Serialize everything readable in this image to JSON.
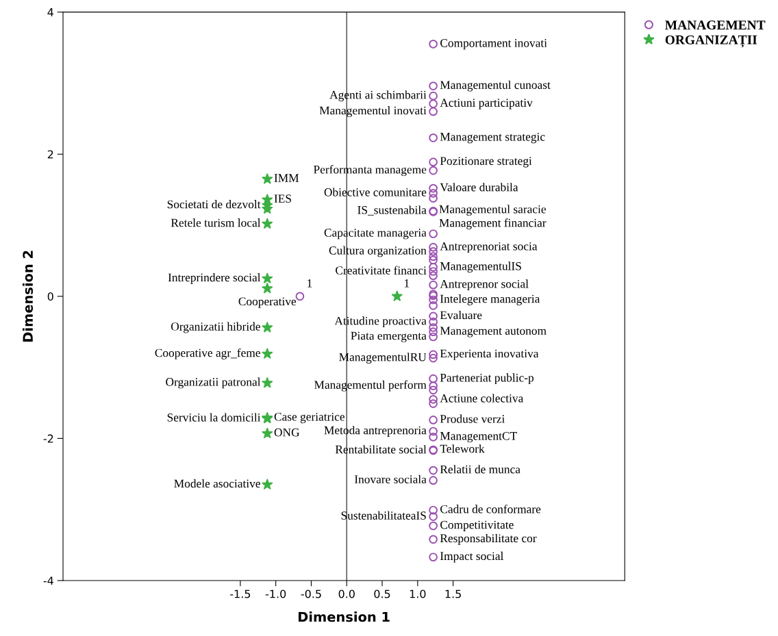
{
  "chart_data": {
    "type": "scatter",
    "xlabel": "Dimension 1",
    "ylabel": "Dimension 2",
    "xlim": [
      -4.0,
      3.92
    ],
    "ylim": [
      -4,
      4
    ],
    "xticks": [
      -1.5,
      {
        "value": -1,
        "label": "-1.0"
      },
      -0.5,
      {
        "value": 0,
        "label": "0.0"
      },
      0.5,
      {
        "value": 1,
        "label": "1.0"
      },
      1.5
    ],
    "yticks": [
      -4,
      -2,
      0,
      2,
      4
    ],
    "grid": false,
    "legend": "top right",
    "ref_lines": [
      {
        "axis": "x",
        "value": 0,
        "color": "#444444"
      }
    ],
    "series": [
      {
        "name": "MANAGEMENT",
        "color": "#9b4fb0",
        "marker": "circle",
        "x": [
          1.22,
          1.22,
          1.22,
          1.22,
          1.22,
          1.22,
          1.22,
          1.22,
          1.22,
          1.22,
          1.22,
          1.22,
          1.22,
          1.22,
          1.22,
          1.22,
          1.22,
          1.22,
          1.22,
          1.22,
          1.22,
          1.22,
          1.22,
          1.22,
          1.22,
          1.22,
          1.22,
          1.22,
          1.22,
          1.22,
          1.22,
          1.22,
          1.22,
          1.22,
          1.22,
          1.22,
          1.22,
          1.22,
          1.22,
          1.22,
          1.22,
          1.22,
          1.22,
          1.22,
          1.22,
          1.22,
          1.22,
          1.22,
          1.22,
          1.22,
          -0.66
        ],
        "values": [
          3.55,
          2.96,
          2.82,
          2.71,
          2.6,
          2.23,
          1.89,
          1.77,
          1.52,
          1.45,
          1.38,
          1.2,
          1.19,
          0.88,
          0.69,
          0.63,
          0.56,
          0.51,
          0.41,
          0.35,
          0.29,
          0.16,
          0.01,
          0.03,
          -0.05,
          -0.13,
          -0.28,
          -0.36,
          -0.44,
          -0.5,
          -0.57,
          -0.82,
          -0.87,
          -1.16,
          -1.26,
          -1.32,
          -1.45,
          -1.51,
          -1.74,
          -1.9,
          -1.98,
          -2.16,
          -2.17,
          -2.45,
          -2.59,
          -3.01,
          -3.1,
          -3.23,
          -3.42,
          -3.67,
          0.0
        ],
        "value_labels": [
          "Comportament inovati",
          "Managementul cunoast",
          "Agenti ai schimbarii",
          "Actiuni participativ",
          "Managementul inovati",
          "Management strategic",
          "Pozitionare strategi",
          "Performanta manageme",
          "Valoare durabila",
          "Obiective comunitare",
          "Managementul saracie",
          "IS_sustenabila",
          "Management financiar",
          "Capacitate manageria",
          "Antreprenoriat socia",
          "Cultura organization",
          null,
          null,
          "ManagementulIS",
          "Creativitate financi",
          null,
          "Antreprenor social",
          null,
          null,
          "Intelegere manageria",
          null,
          "Evaluare",
          "Atitudine proactiva",
          null,
          "Management autonom",
          "Piata emergenta",
          "Experienta inovativa",
          "ManagementulRU",
          "Parteneriat public-p",
          "Managementul perform",
          null,
          "Actiune colectiva",
          null,
          "Produse verzi",
          "Metoda antreprenoria",
          "ManagementCT",
          "Telework",
          "Rentabilitate social",
          "Relatii de munca",
          "Inovare sociala",
          "Cadru de conformare",
          "SustenabilitateaIS",
          "Competitivitate",
          "Responsabilitate cor",
          "Impact social",
          null
        ]
      },
      {
        "name": "ORGANIZAȚII",
        "color": "#3cb043",
        "marker": "star",
        "x": [
          -1.12,
          -1.12,
          -1.12,
          -1.12,
          -1.12,
          -1.12,
          -1.12,
          -1.12,
          -1.12,
          -1.12,
          -1.12,
          -1.12,
          -1.12,
          -1.12,
          0.71
        ],
        "values": [
          1.65,
          1.36,
          1.28,
          1.23,
          1.02,
          0.25,
          0.11,
          -0.44,
          -0.81,
          -1.22,
          -1.71,
          -1.72,
          -1.93,
          -2.65,
          0.0
        ],
        "value_labels": [
          "IMM",
          "IES",
          "Societati de dezvolt",
          null,
          "Retele turism local",
          "Intreprindere social",
          "Cooperative",
          "Organizatii hibride",
          "Cooperative agr_feme",
          "Organizatii patronal",
          "Case geriatrice",
          "Serviciu la domicili",
          "ONG",
          "Modele asociative",
          null
        ]
      }
    ],
    "annotations": [
      {
        "text": "1",
        "x": -0.66,
        "y": 0.0
      },
      {
        "text": "1",
        "x": 0.71,
        "y": 0.0
      }
    ]
  }
}
